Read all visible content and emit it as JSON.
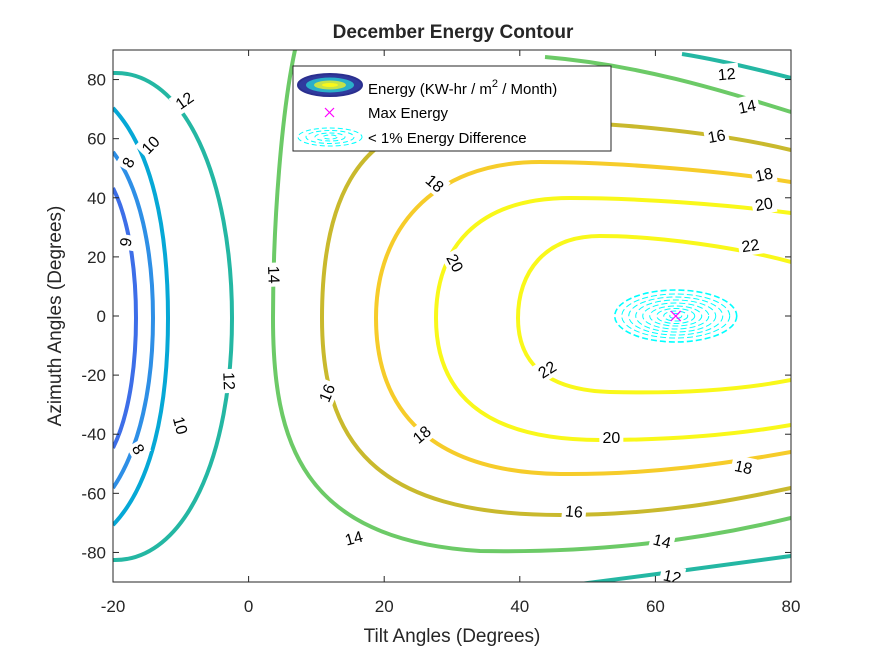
{
  "chart_data": {
    "type": "contour",
    "title": "December Energy Contour",
    "xlabel": "Tilt Angles (Degrees)",
    "ylabel": "Azimuth Angles (Degrees)",
    "xlim": [
      -20,
      80
    ],
    "ylim": [
      -90,
      90
    ],
    "xticks": [
      -20,
      0,
      20,
      40,
      60,
      80
    ],
    "yticks": [
      -80,
      -60,
      -40,
      -20,
      0,
      20,
      40,
      60,
      80
    ],
    "grid": false,
    "legend_position": "top-center",
    "legend": [
      {
        "label_prefix": "Energy (KW-hr / m",
        "label_sup": "2",
        "label_suffix": " / Month)",
        "marker": "contour-swatch"
      },
      {
        "label": "Max Energy",
        "marker": "x",
        "color": "#ff00ff"
      },
      {
        "label": "< 1% Energy Difference",
        "marker": "dashed-ellipse",
        "color": "#00ffff"
      }
    ],
    "max_point": {
      "x": 63,
      "y": 0
    },
    "levels": [
      {
        "level": 9,
        "color": "#3d6ee8",
        "labels": [
          {
            "text": "9",
            "x": -18.2,
            "y": 25,
            "rot": 80
          }
        ]
      },
      {
        "level": 8,
        "color": "#2e8fe6",
        "labels": [
          {
            "text": "8",
            "x": -17.8,
            "y": 52,
            "rot": 60
          },
          {
            "text": "8",
            "x": -16.2,
            "y": -45,
            "rot": -60
          }
        ]
      },
      {
        "level": 10,
        "color": "#06a8d6",
        "labels": [
          {
            "text": "10",
            "x": -14.5,
            "y": 58,
            "rot": 45
          },
          {
            "text": "10",
            "x": -10,
            "y": -37,
            "rot": -75
          }
        ]
      },
      {
        "level": 12,
        "color": "#24b7a3",
        "labels": [
          {
            "text": "12",
            "x": -9.5,
            "y": 73,
            "rot": 35
          },
          {
            "text": "12",
            "x": -2.8,
            "y": -22,
            "rot": -88
          },
          {
            "text": "12",
            "x": 70.5,
            "y": 82,
            "rot": 5
          },
          {
            "text": "12",
            "x": 62.5,
            "y": -88,
            "rot": -12
          }
        ]
      },
      {
        "level": 14,
        "color": "#6cca67",
        "labels": [
          {
            "text": "14",
            "x": 3.8,
            "y": 14,
            "rot": -88
          },
          {
            "text": "14",
            "x": 15.5,
            "y": -75,
            "rot": 15
          },
          {
            "text": "14",
            "x": 73.5,
            "y": 71,
            "rot": 12
          },
          {
            "text": "14",
            "x": 61,
            "y": -76,
            "rot": -14
          }
        ]
      },
      {
        "level": 16,
        "color": "#c9b92d",
        "labels": [
          {
            "text": "16",
            "x": 11.5,
            "y": -26,
            "rot": 68
          },
          {
            "text": "16",
            "x": 48,
            "y": -66,
            "rot": -5
          },
          {
            "text": "16",
            "x": 69,
            "y": 61,
            "rot": 10
          }
        ]
      },
      {
        "level": 18,
        "color": "#f6cc2a",
        "labels": [
          {
            "text": "18",
            "x": 27.5,
            "y": 45,
            "rot": -40
          },
          {
            "text": "18",
            "x": 25.5,
            "y": -40,
            "rot": 40
          },
          {
            "text": "18",
            "x": 73,
            "y": -51,
            "rot": -12
          },
          {
            "text": "18",
            "x": 76,
            "y": 48,
            "rot": 12
          }
        ]
      },
      {
        "level": 20,
        "color": "#f9f81a",
        "labels": [
          {
            "text": "20",
            "x": 30.5,
            "y": 18,
            "rot": -62
          },
          {
            "text": "20",
            "x": 53.5,
            "y": -41,
            "rot": 0
          },
          {
            "text": "20",
            "x": 76,
            "y": 38,
            "rot": 10
          }
        ]
      },
      {
        "level": 22,
        "color": "#f9f81a",
        "labels": [
          {
            "text": "22",
            "x": 44,
            "y": -18,
            "rot": 32
          },
          {
            "text": "22",
            "x": 74,
            "y": 24,
            "rot": 8
          }
        ]
      }
    ]
  }
}
